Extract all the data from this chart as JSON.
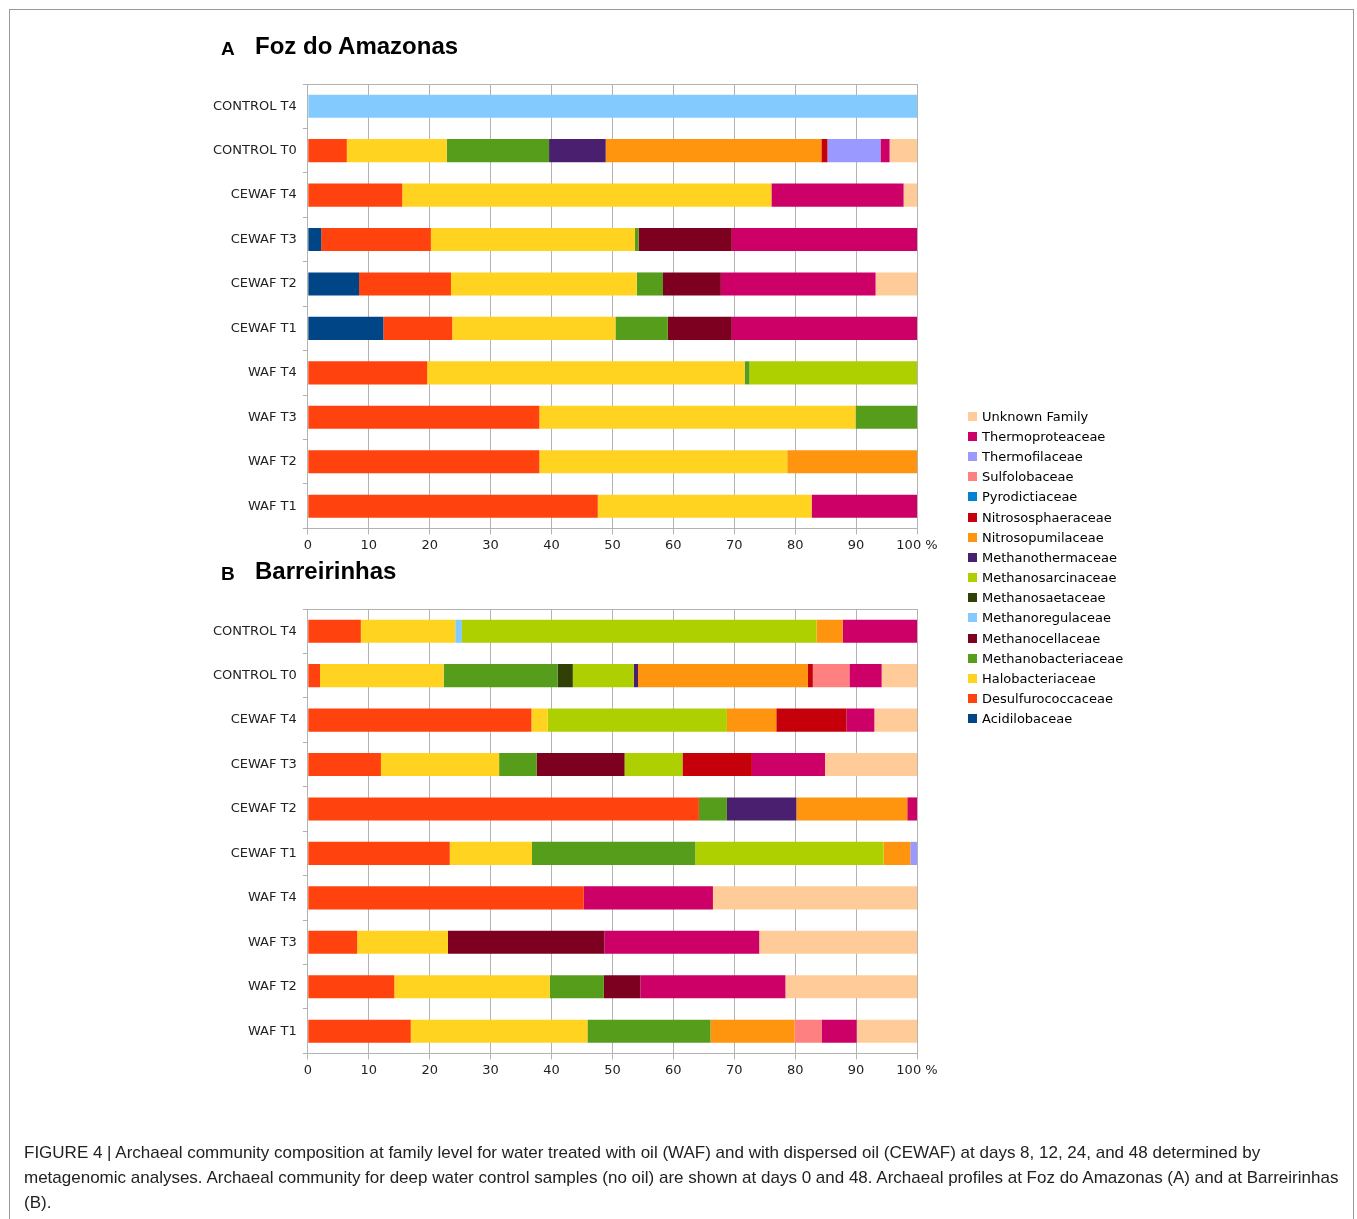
{
  "chart_data": [
    {
      "type": "bar",
      "orientation": "horizontal",
      "stacked": true,
      "title": "Foz do Amazonas",
      "annotations": [
        "A"
      ],
      "categories": [
        "CONTROL T4",
        "CONTROL T0",
        "CEWAF T4",
        "CEWAF T3",
        "CEWAF T2",
        "CEWAF T1",
        "WAF T4",
        "WAF T3",
        "WAF T2",
        "WAF T1"
      ],
      "xlim": [
        0,
        100
      ],
      "xticks": [
        0,
        10,
        20,
        30,
        40,
        50,
        60,
        70,
        80,
        90,
        {
          "value": 100,
          "label": "100 %"
        }
      ],
      "grid": "x",
      "series": [
        {
          "color": "#004586",
          "values": [
            0,
            0,
            0,
            2.2,
            8.4,
            12.4,
            0,
            0,
            0,
            0
          ]
        },
        {
          "color": "#ff420e",
          "values": [
            0,
            6.4,
            15.5,
            18.0,
            15.1,
            11.3,
            19.6,
            38.0,
            38.0,
            47.6
          ]
        },
        {
          "color": "#ffd320",
          "values": [
            0,
            16.4,
            60.6,
            33.5,
            30.5,
            26.8,
            52.1,
            51.9,
            40.7,
            35.1
          ]
        },
        {
          "color": "#579d1c",
          "values": [
            0,
            16.8,
            0,
            0.6,
            4.3,
            8.6,
            0.8,
            10.1,
            0,
            0
          ]
        },
        {
          "color": "#7e0021",
          "values": [
            0,
            0,
            0,
            15.3,
            9.5,
            10.5,
            0,
            0,
            0,
            0
          ]
        },
        {
          "color": "#83caff",
          "values": [
            100,
            0,
            0,
            0,
            0,
            0,
            0,
            0,
            0,
            0
          ]
        },
        {
          "color": "#314004",
          "values": [
            0,
            0,
            0,
            0,
            0,
            0,
            0,
            0,
            0,
            0
          ]
        },
        {
          "color": "#aecf00",
          "values": [
            0,
            0,
            0,
            0,
            0,
            0,
            27.5,
            0,
            0,
            0
          ]
        },
        {
          "color": "#4b1f6f",
          "values": [
            0,
            9.3,
            0,
            0,
            0,
            0,
            0,
            0,
            0,
            0
          ]
        },
        {
          "color": "#ff950e",
          "values": [
            0,
            35.4,
            0,
            0,
            0,
            0,
            0,
            0,
            21.3,
            0
          ]
        },
        {
          "color": "#c5000b",
          "values": [
            0,
            1.0,
            0,
            0,
            0,
            0,
            0,
            0,
            0,
            0
          ]
        },
        {
          "color": "#0084d1",
          "values": [
            0,
            0,
            0,
            0,
            0,
            0,
            0,
            0,
            0,
            0
          ]
        },
        {
          "color": "#ff8080",
          "values": [
            0,
            0,
            0,
            0,
            0,
            0,
            0,
            0,
            0,
            0
          ]
        },
        {
          "color": "#9999ff",
          "values": [
            0,
            8.7,
            0,
            0,
            0,
            0,
            0,
            0,
            0,
            0
          ]
        },
        {
          "color": "#cc0066",
          "values": [
            0,
            1.5,
            21.7,
            30.4,
            25.4,
            30.4,
            0,
            0,
            0,
            17.3
          ]
        },
        {
          "color": "#ffcc99",
          "values": [
            0,
            4.5,
            2.2,
            0,
            6.8,
            0,
            0,
            0,
            0,
            0
          ]
        }
      ]
    },
    {
      "type": "bar",
      "orientation": "horizontal",
      "stacked": true,
      "title": "Barreirinhas",
      "annotations": [
        "B",
        "FIGURE 4 | Archaeal community composition at family level for water treated with oil (WAF) and with dispersed oil (CEWAF) at days 8, 12, 24, and 48 determined by metagenomic analyses. Archaeal community for deep water control samples (no oil) are shown at days 0 and 48. Archaeal profiles at Foz do Amazonas (A) and at Barreirinhas (B)."
      ],
      "categories": [
        "CONTROL T4",
        "CONTROL T0",
        "CEWAF T4",
        "CEWAF T3",
        "CEWAF T2",
        "CEWAF T1",
        "WAF T4",
        "WAF T3",
        "WAF T2",
        "WAF T1"
      ],
      "xlim": [
        0,
        100
      ],
      "xticks": [
        0,
        10,
        20,
        30,
        40,
        50,
        60,
        70,
        80,
        90,
        {
          "value": 100,
          "label": "100 %"
        }
      ],
      "grid": "x",
      "legend": "right",
      "series": [
        {
          "name": "Acidilobaceae",
          "color": "#004586",
          "values": [
            0,
            0,
            0,
            0,
            0,
            0,
            0,
            0,
            0,
            0
          ]
        },
        {
          "name": "Desulfurococcaceae",
          "color": "#ff420e",
          "values": [
            8.7,
            2.0,
            36.7,
            12.0,
            64.2,
            23.3,
            45.3,
            8.1,
            14.2,
            16.9
          ]
        },
        {
          "name": "Halobacteriaceae",
          "color": "#ffd320",
          "values": [
            15.5,
            20.3,
            2.7,
            19.4,
            0,
            13.5,
            0,
            14.9,
            25.5,
            29.0
          ]
        },
        {
          "name": "Methanobacteriaceae",
          "color": "#579d1c",
          "values": [
            0,
            18.7,
            0,
            6.2,
            4.6,
            26.8,
            0,
            0,
            8.9,
            20.2
          ]
        },
        {
          "name": "Methanocellaceae",
          "color": "#7e0021",
          "values": [
            0,
            0,
            0,
            14.4,
            0,
            0,
            0,
            25.7,
            6.0,
            0
          ]
        },
        {
          "name": "Methanoregulaceae",
          "color": "#83caff",
          "values": [
            1.1,
            0,
            0,
            0,
            0,
            0,
            0,
            0,
            0,
            0
          ]
        },
        {
          "name": "Methanosaetaceae",
          "color": "#314004",
          "values": [
            0,
            2.5,
            0,
            0,
            0,
            0,
            0,
            0,
            0,
            0
          ]
        },
        {
          "name": "Methanosarcinaceae",
          "color": "#aecf00",
          "values": [
            58.2,
            10.0,
            29.4,
            9.5,
            0,
            30.9,
            0,
            0,
            0,
            0
          ]
        },
        {
          "name": "Methanothermaceae",
          "color": "#4b1f6f",
          "values": [
            0,
            0.7,
            0,
            0,
            11.4,
            0,
            0,
            0,
            0,
            0
          ]
        },
        {
          "name": "Nitrosopumilaceae",
          "color": "#ff950e",
          "values": [
            4.3,
            27.9,
            8.1,
            0,
            18.2,
            4.4,
            0,
            0,
            0,
            13.8
          ]
        },
        {
          "name": "Nitrososphaeraceae",
          "color": "#c5000b",
          "values": [
            0,
            0.8,
            11.5,
            11.4,
            0,
            0,
            0,
            0,
            0,
            0
          ]
        },
        {
          "name": "Pyrodictiaceae",
          "color": "#0084d1",
          "values": [
            0,
            0,
            0,
            0,
            0,
            0,
            0,
            0,
            0,
            0
          ]
        },
        {
          "name": "Sulfolobaceae",
          "color": "#ff8080",
          "values": [
            0,
            6.0,
            0,
            0,
            0,
            0,
            0,
            0,
            0,
            4.5
          ]
        },
        {
          "name": "Thermofilaceae",
          "color": "#9999ff",
          "values": [
            0,
            0,
            0,
            0,
            0,
            1.1,
            0,
            0,
            0,
            0
          ]
        },
        {
          "name": "Thermoproteaceae",
          "color": "#cc0066",
          "values": [
            12.2,
            5.3,
            4.6,
            12.0,
            1.6,
            0,
            21.2,
            25.4,
            23.8,
            5.7
          ]
        },
        {
          "name": "Unknown Family",
          "color": "#ffcc99",
          "values": [
            0,
            5.8,
            7.0,
            15.1,
            0,
            0,
            33.5,
            25.9,
            21.6,
            9.9
          ]
        }
      ]
    }
  ]
}
